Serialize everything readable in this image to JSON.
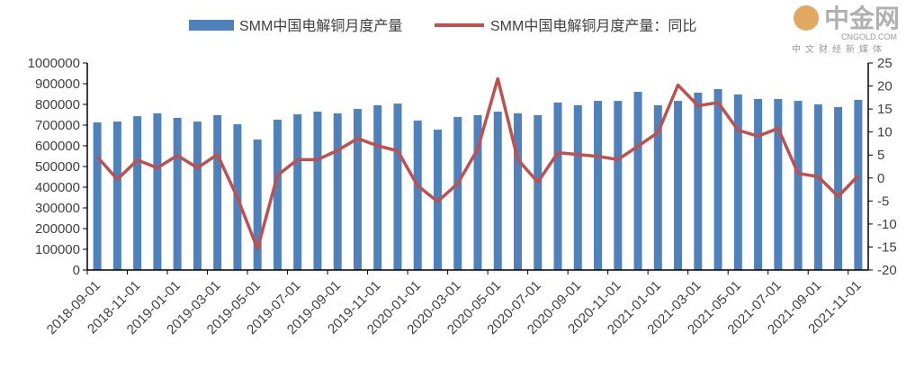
{
  "chart_data": {
    "type": "bar+line",
    "title": "",
    "categories": [
      "2018-09-01",
      "2018-10-01",
      "2018-11-01",
      "2018-12-01",
      "2019-01-01",
      "2019-02-01",
      "2019-03-01",
      "2019-04-01",
      "2019-05-01",
      "2019-06-01",
      "2019-07-01",
      "2019-08-01",
      "2019-09-01",
      "2019-10-01",
      "2019-11-01",
      "2019-12-01",
      "2020-01-01",
      "2020-02-01",
      "2020-03-01",
      "2020-04-01",
      "2020-05-01",
      "2020-06-01",
      "2020-07-01",
      "2020-08-01",
      "2020-09-01",
      "2020-10-01",
      "2020-11-01",
      "2020-12-01",
      "2021-01-01",
      "2021-02-01",
      "2021-03-01",
      "2021-04-01",
      "2021-05-01",
      "2021-06-01",
      "2021-07-01",
      "2021-08-01",
      "2021-09-01",
      "2021-10-01",
      "2021-11-01"
    ],
    "tick_labels": [
      "2018-09-01",
      "2018-11-01",
      "2019-01-01",
      "2019-03-01",
      "2019-05-01",
      "2019-07-01",
      "2019-09-01",
      "2019-11-01",
      "2020-01-01",
      "2020-03-01",
      "2020-05-01",
      "2020-07-01",
      "2020-09-01",
      "2020-11-01",
      "2021-01-01",
      "2021-03-01",
      "2021-05-01",
      "2021-07-01",
      "2021-09-01",
      "2021-11-01"
    ],
    "series": [
      {
        "name": "SMM中国电解铜月度产量",
        "type": "bar",
        "axis": "left",
        "color": "#4F81BD",
        "values": [
          713000,
          717000,
          743000,
          757000,
          735000,
          717000,
          748000,
          704000,
          630000,
          726000,
          752000,
          765000,
          757000,
          778000,
          796000,
          804000,
          722000,
          678000,
          739000,
          748000,
          765000,
          757000,
          748000,
          809000,
          796000,
          817000,
          817000,
          861000,
          796000,
          817000,
          857000,
          874000,
          848000,
          826000,
          826000,
          817000,
          800000,
          787000,
          822000
        ]
      },
      {
        "name": "SMM中国电解铜月度产量：同比",
        "type": "line",
        "axis": "right",
        "color": "#C0504D",
        "values": [
          4.6,
          -0.3,
          3.9,
          2.2,
          4.9,
          2.2,
          5.1,
          -4.3,
          -15.4,
          0.6,
          4.0,
          4.0,
          6.0,
          8.6,
          7.0,
          5.9,
          -1.7,
          -5.1,
          -1.2,
          6.3,
          21.6,
          4.0,
          -0.9,
          5.5,
          5.1,
          4.7,
          4.0,
          6.9,
          9.9,
          20.2,
          15.7,
          16.4,
          10.4,
          9.1,
          10.8,
          1.0,
          0.3,
          -4.0,
          0.5
        ]
      }
    ],
    "y_left": {
      "lim": [
        0,
        1000000
      ],
      "ticks": [
        "0",
        "100000",
        "200000",
        "300000",
        "400000",
        "500000",
        "600000",
        "700000",
        "800000",
        "900000",
        "1000000"
      ]
    },
    "y_right": {
      "lim": [
        -20,
        25
      ],
      "ticks": [
        "-20",
        "-15",
        "-10",
        "-5",
        "0",
        "5",
        "10",
        "15",
        "20",
        "25"
      ]
    },
    "grid": false,
    "legend_position": "top"
  },
  "watermark": {
    "logo": "中金网",
    "site": "CNGOLD.COM",
    "tagline": "中文财经新媒体"
  }
}
